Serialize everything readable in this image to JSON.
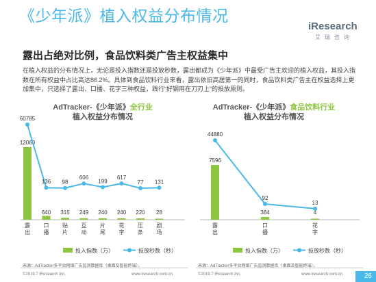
{
  "page": {
    "title": "《少年派》植入权益分布情况",
    "subtitle": "露出占绝对比例，食品饮料类广告主权益集中",
    "paragraph_1": "在植入权益的分布情况上，无论是投入指数还是投放秒数，露出都成为《少年派》中最受广告主欢迎的植入权益，其投入指数在所有权益中占比高达86.2%。具体到食品饮料行业来看，露出依旧高居第一的同时，食品饮料类广告主在权益选择上更加集中，只选择了露出、口播、花字三种权益，践行“好钢用在刀刃上”的投放原则。",
    "logo_text": "iResearch",
    "logo_sub": "艾瑞咨询",
    "page_number": "26",
    "colors": {
      "bar": "#8dc63f",
      "line": "#4ab8e8",
      "title": "#4ab8e8"
    }
  },
  "footers": [
    {
      "source": "来源：AdTracker多平台网络广告监测数据库（桌面及智能终端）。",
      "copyright": "©2019.7 iResearch Inc.",
      "url": "www.iresearch.com.cn"
    },
    {
      "source": "来源：AdTracker多平台网络广告监测数据库（桌面及智能终端）。",
      "copyright": "©2019.7 iResearch Inc.",
      "url": "www.iresearch.com.cn"
    }
  ],
  "chart_data": [
    {
      "type": "bar",
      "title_main": "AdTracker-《少年派》",
      "title_highlight": "全行业",
      "title_line2": "植入权益分布情况",
      "categories": [
        "露出",
        "口播",
        "贴片",
        "互动",
        "片尾",
        "花字",
        "压条",
        "剧场"
      ],
      "series": [
        {
          "name": "投入指数（万）",
          "kind": "bar",
          "values": [
            12060,
            640,
            315,
            249,
            240,
            240,
            220,
            28
          ]
        },
        {
          "name": "投放秒数（秒）",
          "kind": "line",
          "values": [
            60785,
            136,
            98,
            606,
            199,
            617,
            77,
            131
          ]
        }
      ]
    },
    {
      "type": "bar",
      "title_main": "AdTracker-《少年派》",
      "title_highlight": "食品饮料行业",
      "title_line2": "植入权益分布情况",
      "categories": [
        "露出",
        "口播",
        "花字"
      ],
      "series": [
        {
          "name": "投入指数（万）",
          "kind": "bar",
          "values": [
            7596,
            384,
            4
          ]
        },
        {
          "name": "投放秒数（秒）",
          "kind": "line",
          "values": [
            44880,
            92,
            13
          ]
        }
      ]
    }
  ]
}
